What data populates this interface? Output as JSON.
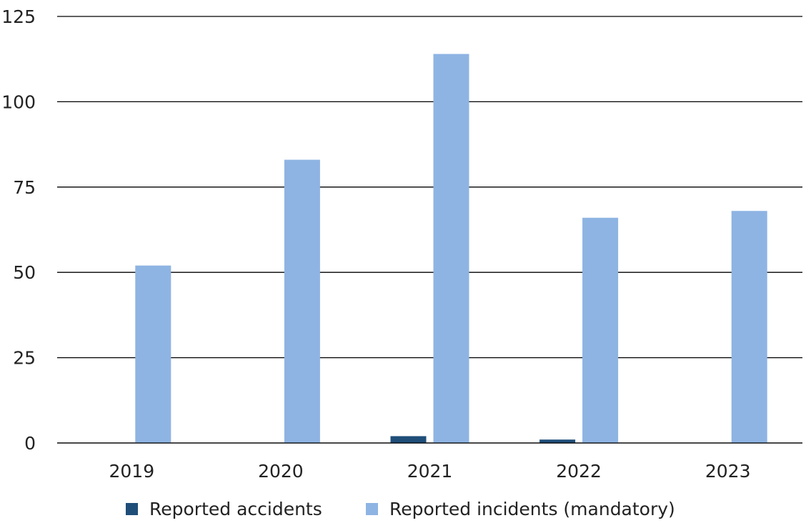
{
  "chart_data": {
    "type": "bar",
    "title": "",
    "xlabel": "",
    "ylabel": "",
    "categories": [
      "2019",
      "2020",
      "2021",
      "2022",
      "2023"
    ],
    "series": [
      {
        "name": "Reported accidents",
        "values": [
          0,
          0,
          2,
          1,
          0
        ],
        "color": "#1f4e79"
      },
      {
        "name": "Reported incidents (mandatory)",
        "values": [
          52,
          83,
          114,
          66,
          68
        ],
        "color": "#8eb4e3"
      }
    ],
    "ylim": [
      0,
      125
    ],
    "yticks": [
      "0",
      "25",
      "50",
      "75",
      "100",
      "125"
    ],
    "grid": true,
    "legend_position": "bottom"
  }
}
